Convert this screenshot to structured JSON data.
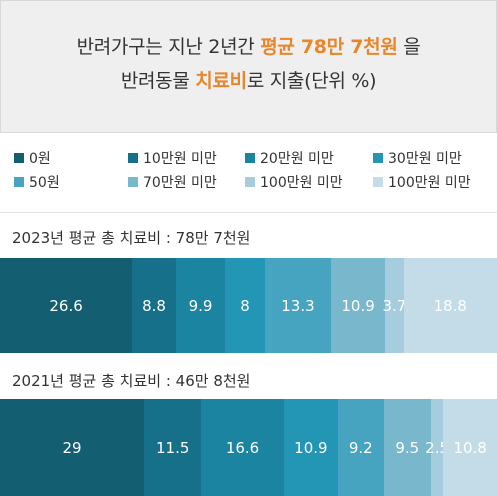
{
  "header": {
    "line1_pre": "반려가구는 지난 2년간 ",
    "line1_hl": "평균 78만 7천원",
    "line1_post": " 을",
    "line2_pre": "반려동물 ",
    "line2_hl": "치료비",
    "line2_post": "로 지출(단위 %)"
  },
  "legend": [
    {
      "label": "0원",
      "color": "#135e70"
    },
    {
      "label": "10만원 미만",
      "color": "#16708a"
    },
    {
      "label": "20만원 미만",
      "color": "#1b84a0"
    },
    {
      "label": "30만원 미만",
      "color": "#2396b5"
    },
    {
      "label": "50원",
      "color": "#46a4c0"
    },
    {
      "label": "70만원 미만",
      "color": "#79b7cd"
    },
    {
      "label": "100만원 미만",
      "color": "#a5cddd"
    },
    {
      "label": "100만원 미만",
      "color": "#c4dce7"
    }
  ],
  "chart_data": {
    "type": "bar",
    "orientation": "horizontal-stacked",
    "series_labels": [
      "0원",
      "10만원 미만",
      "20만원 미만",
      "30만원 미만",
      "50원",
      "70만원 미만",
      "100만원 미만",
      "100만원 미만"
    ],
    "rows": [
      {
        "label": "2023년 평균 총 치료비 : 78만 7천원",
        "values": [
          26.6,
          8.8,
          9.9,
          8,
          13.3,
          10.9,
          3.7,
          18.8
        ]
      },
      {
        "label": "2021년 평균 총 치료비 : 46만 8천원",
        "values": [
          29,
          11.5,
          16.6,
          10.9,
          9.2,
          9.5,
          2.5,
          10.8
        ]
      }
    ],
    "colors": [
      "#135e70",
      "#16708a",
      "#1b84a0",
      "#2396b5",
      "#46a4c0",
      "#79b7cd",
      "#a5cddd",
      "#c4dce7"
    ]
  }
}
